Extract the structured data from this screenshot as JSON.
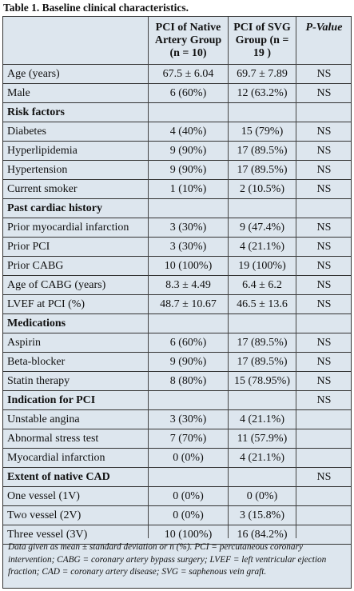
{
  "caption": "Table 1.  Baseline clinical characteristics.",
  "headers": {
    "col2": "PCI of Native Artery Group (n = 10)",
    "col3": "PCI of SVG Group (n = 19 )",
    "col4": "P-Value"
  },
  "rows": [
    {
      "label": "Age (years)",
      "native": "67.5 ± 6.04",
      "svg": "69.7 ± 7.89",
      "p": "NS"
    },
    {
      "label": "Male",
      "native": "6 (60%)",
      "svg": "12 (63.2%)",
      "p": "NS"
    },
    {
      "label": "Risk factors",
      "section": true
    },
    {
      "label": "Diabetes",
      "native": "4 (40%)",
      "svg": "15 (79%)",
      "p": "NS"
    },
    {
      "label": "Hyperlipidemia",
      "native": "9 (90%)",
      "svg": "17 (89.5%)",
      "p": "NS"
    },
    {
      "label": "Hypertension",
      "native": "9 (90%)",
      "svg": "17 (89.5%)",
      "p": "NS"
    },
    {
      "label": "Current smoker",
      "native": "1 (10%)",
      "svg": "2 (10.5%)",
      "p": "NS"
    },
    {
      "label": "Past cardiac history",
      "section": true
    },
    {
      "label": "Prior myocardial infarction",
      "native": "3 (30%)",
      "svg": "9 (47.4%)",
      "p": "NS"
    },
    {
      "label": "Prior PCI",
      "native": "3 (30%)",
      "svg": "4 (21.1%)",
      "p": "NS"
    },
    {
      "label": "Prior CABG",
      "native": "10 (100%)",
      "svg": "19 (100%)",
      "p": "NS"
    },
    {
      "label": "Age of CABG (years)",
      "native": "8.3 ± 4.49",
      "svg": "6.4 ± 6.2",
      "p": "NS"
    },
    {
      "label": "LVEF at PCI (%)",
      "native": "48.7 ± 10.67",
      "svg": "46.5 ± 13.6",
      "p": "NS"
    },
    {
      "label": "Medications",
      "section": true
    },
    {
      "label": "Aspirin",
      "native": "6 (60%)",
      "svg": "17 (89.5%)",
      "p": "NS"
    },
    {
      "label": "Beta-blocker",
      "native": "9 (90%)",
      "svg": "17 (89.5%)",
      "p": "NS"
    },
    {
      "label": "Statin therapy",
      "native": "8 (80%)",
      "svg": "15 (78.95%)",
      "p": "NS"
    },
    {
      "label": "Indication for PCI",
      "section": true,
      "p": "NS"
    },
    {
      "label": "Unstable angina",
      "native": "3 (30%)",
      "svg": "4 (21.1%)",
      "p": ""
    },
    {
      "label": "Abnormal stress test",
      "native": "7 (70%)",
      "svg": "11 (57.9%)",
      "p": ""
    },
    {
      "label": "Myocardial infarction",
      "native": "0 (0%)",
      "svg": "4 (21.1%)",
      "p": ""
    },
    {
      "label": "Extent of native CAD",
      "section": true,
      "p": "NS"
    },
    {
      "label": "One vessel (1V)",
      "native": "0 (0%)",
      "svg": "0 (0%)",
      "p": ""
    },
    {
      "label": "Two vessel (2V)",
      "native": "0 (0%)",
      "svg": "3 (15.8%)",
      "p": ""
    },
    {
      "label": "Three vessel (3V)",
      "native": "10 (100%)",
      "svg": "16 (84.2%)",
      "p": ""
    }
  ],
  "footnote": "Data given as mean ± standard deviation or n (%).  PCI = percutaneous coronary intervention; CABG = coronary artery bypass surgery; LVEF = left ventricular ejection fraction; CAD = coronary artery disease; SVG = saphenous vein graft."
}
